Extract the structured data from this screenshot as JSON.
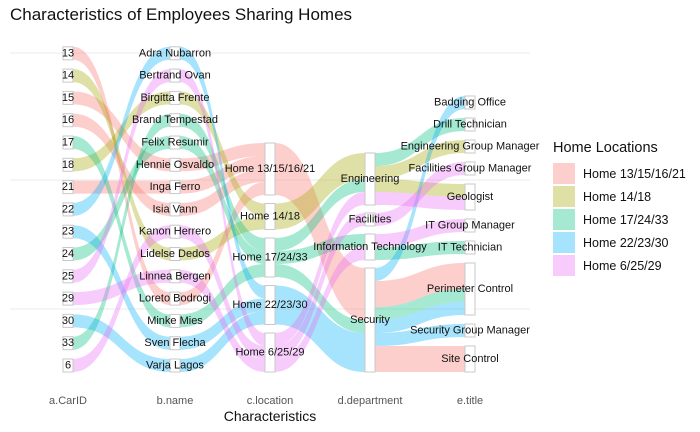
{
  "title": "Characteristics of Employees Sharing Homes",
  "x_axis_title": "Characteristics",
  "axes": [
    {
      "label": "a.CarID",
      "strata": [
        "13",
        "14",
        "15",
        "16",
        "17",
        "18",
        "21",
        "22",
        "23",
        "24",
        "25",
        "29",
        "30",
        "33",
        "6"
      ]
    },
    {
      "label": "b.name",
      "strata": [
        "Adra Nubarron",
        "Bertrand Ovan",
        "Birgitta Frente",
        "Brand Tempestad",
        "Felix Resumir",
        "Hennie Osvaldo",
        "Inga Ferro",
        "Isia Vann",
        "Kanon Herrero",
        "Lidelse Dedos",
        "Linnea Bergen",
        "Loreto Bodrogi",
        "Minke Mies",
        "Sven Flecha",
        "Varja Lagos"
      ]
    },
    {
      "label": "c.location",
      "strata": [
        "Home 13/15/16/21",
        "Home 14/18",
        "Home 17/24/33",
        "Home 22/23/30",
        "Home 6/25/29"
      ]
    },
    {
      "label": "d.department",
      "strata": [
        "Engineering",
        "Facilities",
        "Information Technology",
        "Security"
      ]
    },
    {
      "label": "e.title",
      "strata": [
        "Badging Office",
        "Drill Technician",
        "Engineering Group Manager",
        "Facilities Group Manager",
        "Geologist",
        "IT Group Manager",
        "IT Technician",
        "Perimeter Control",
        "Security Group Manager",
        "Site Control"
      ]
    }
  ],
  "legend": {
    "title": "Home Locations",
    "items": [
      {
        "label": "Home 13/15/16/21",
        "color": "#F8766D"
      },
      {
        "label": "Home 14/18",
        "color": "#A3A500"
      },
      {
        "label": "Home 17/24/33",
        "color": "#00BF7D"
      },
      {
        "label": "Home 22/23/30",
        "color": "#00B0F6"
      },
      {
        "label": "Home 6/25/29",
        "color": "#E76BF3"
      }
    ]
  },
  "records": [
    [
      "13",
      "Loreto Bodrogi",
      "Home 13/15/16/21",
      "Security",
      "Site Control"
    ],
    [
      "15",
      "Hennie Osvaldo",
      "Home 13/15/16/21",
      "Security",
      "Perimeter Control"
    ],
    [
      "16",
      "Isia Vann",
      "Home 13/15/16/21",
      "Security",
      "Site Control"
    ],
    [
      "21",
      "Inga Ferro",
      "Home 13/15/16/21",
      "Security",
      "Perimeter Control"
    ],
    [
      "14",
      "Lidelse Dedos",
      "Home 14/18",
      "Engineering",
      "Geologist"
    ],
    [
      "18",
      "Birgitta Frente",
      "Home 14/18",
      "Engineering",
      "Engineering Group Manager"
    ],
    [
      "17",
      "Minke Mies",
      "Home 17/24/33",
      "Information Technology",
      "IT Technician"
    ],
    [
      "24",
      "Felix Resumir",
      "Home 17/24/33",
      "Security",
      "Perimeter Control"
    ],
    [
      "33",
      "Brand Tempestad",
      "Home 17/24/33",
      "Engineering",
      "Drill Technician"
    ],
    [
      "22",
      "Adra Nubarron",
      "Home 22/23/30",
      "Security",
      "Badging Office"
    ],
    [
      "23",
      "Sven Flecha",
      "Home 22/23/30",
      "Security",
      "Security Group Manager"
    ],
    [
      "30",
      "Varja Lagos",
      "Home 22/23/30",
      "Security",
      "Perimeter Control"
    ],
    [
      "6",
      "Kanon Herrero",
      "Home 6/25/29",
      "Engineering",
      "Geologist"
    ],
    [
      "25",
      "Bertrand Ovan",
      "Home 6/25/29",
      "Facilities",
      "Facilities Group Manager"
    ],
    [
      "29",
      "Linnea Bergen",
      "Home 6/25/29",
      "Information Technology",
      "IT Group Manager"
    ]
  ]
}
